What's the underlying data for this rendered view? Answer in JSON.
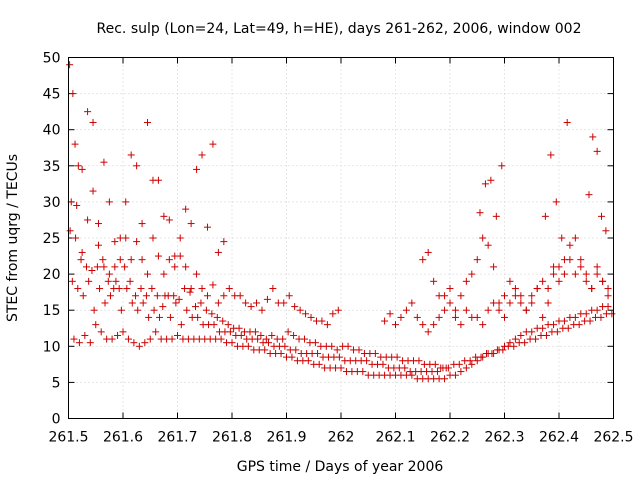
{
  "chart_data": {
    "type": "scatter",
    "title": "Rec. sulp (Lon=24, Lat=49, h=HE), days 261-262, 2006, window 002",
    "xlabel": "GPS time / Days of year 2006",
    "ylabel": "STEC from uqrg / TECUs",
    "xlim": [
      261.5,
      262.5
    ],
    "ylim": [
      0,
      50
    ],
    "xticks": [
      261.5,
      261.6,
      261.7,
      261.8,
      261.9,
      262.0,
      262.1,
      262.2,
      262.3,
      262.4,
      262.5
    ],
    "xtick_labels": [
      "261.5",
      "261.6",
      "261.7",
      "261.8",
      "261.9",
      "262",
      "262.1",
      "262.2",
      "262.3",
      "262.4",
      "262.5"
    ],
    "yticks": [
      0,
      5,
      10,
      15,
      20,
      25,
      30,
      35,
      40,
      45,
      50
    ],
    "ytick_labels": [
      "0",
      "5",
      "10",
      "15",
      "20",
      "25",
      "30",
      "35",
      "40",
      "45",
      "50"
    ],
    "grid": true,
    "marker": "+",
    "marker_color": "#cc0000",
    "series": [
      {
        "name": "STEC",
        "x": [
          261.502,
          261.508,
          261.512,
          261.518,
          261.525,
          261.535,
          261.545,
          261.555,
          261.565,
          261.575,
          261.585,
          261.595,
          261.605,
          261.615,
          261.625,
          261.635,
          261.645,
          261.655,
          261.665,
          261.675,
          261.685,
          261.695,
          261.705,
          261.715,
          261.725,
          261.735,
          261.745,
          261.755,
          261.765,
          261.775,
          261.785,
          261.505,
          261.515,
          261.525,
          261.535,
          261.545,
          261.555,
          261.565,
          261.575,
          261.585,
          261.595,
          261.605,
          261.615,
          261.625,
          261.635,
          261.645,
          261.655,
          261.665,
          261.675,
          261.685,
          261.695,
          261.705,
          261.715,
          261.725,
          261.735,
          261.745,
          261.755,
          261.765,
          261.775,
          261.785,
          261.795,
          261.805,
          261.815,
          261.825,
          261.835,
          261.845,
          261.855,
          261.865,
          261.875,
          261.885,
          261.895,
          261.905,
          261.915,
          261.925,
          261.935,
          261.945,
          261.955,
          261.965,
          261.975,
          261.985,
          261.995,
          261.503,
          261.513,
          261.523,
          261.533,
          261.543,
          261.553,
          261.563,
          261.573,
          261.583,
          261.593,
          261.603,
          261.613,
          261.623,
          261.633,
          261.643,
          261.653,
          261.663,
          261.673,
          261.683,
          261.693,
          261.703,
          261.713,
          261.723,
          261.733,
          261.743,
          261.753,
          261.763,
          261.773,
          261.783,
          261.793,
          261.803,
          261.813,
          261.823,
          261.833,
          261.843,
          261.853,
          261.863,
          261.873,
          261.883,
          261.893,
          261.903,
          261.913,
          261.923,
          261.933,
          261.943,
          261.953,
          261.963,
          261.973,
          261.983,
          261.993,
          262.003,
          262.013,
          262.023,
          262.033,
          262.043,
          262.053,
          262.063,
          262.073,
          262.083,
          262.093,
          262.103,
          262.113,
          262.123,
          262.133,
          262.143,
          262.153,
          262.163,
          262.173,
          262.183,
          262.193,
          261.507,
          261.517,
          261.527,
          261.537,
          261.547,
          261.557,
          261.567,
          261.577,
          261.587,
          261.597,
          261.607,
          261.617,
          261.627,
          261.637,
          261.647,
          261.657,
          261.667,
          261.677,
          261.687,
          261.697,
          261.707,
          261.717,
          261.727,
          261.737,
          261.747,
          261.757,
          261.767,
          261.777,
          261.787,
          261.797,
          261.807,
          261.817,
          261.827,
          261.837,
          261.847,
          261.857,
          261.867,
          261.877,
          261.887,
          261.897,
          261.907,
          261.917,
          261.927,
          261.937,
          261.947,
          261.957,
          261.967,
          261.977,
          261.987,
          261.997,
          262.007,
          262.017,
          262.027,
          262.037,
          262.047,
          262.057,
          262.067,
          262.077,
          262.087,
          262.097,
          262.107,
          262.117,
          262.127,
          262.137,
          262.147,
          262.157,
          262.167,
          262.177,
          262.187,
          262.197,
          262.207,
          262.217,
          262.227,
          262.237,
          262.247,
          262.257,
          262.267,
          262.277,
          262.287,
          262.297,
          262.307,
          262.317,
          262.327,
          262.337,
          262.347,
          262.357,
          262.367,
          262.377,
          262.387,
          262.397,
          262.407,
          262.417,
          262.427,
          262.437,
          262.447,
          262.457,
          262.467,
          262.477,
          262.487,
          262.497,
          261.51,
          261.52,
          261.53,
          261.54,
          261.55,
          261.56,
          261.57,
          261.58,
          261.59,
          261.6,
          261.61,
          261.62,
          261.63,
          261.64,
          261.65,
          261.66,
          261.67,
          261.68,
          261.69,
          261.7,
          261.71,
          261.72,
          261.73,
          261.74,
          261.75,
          261.76,
          261.77,
          261.78,
          261.79,
          261.8,
          261.81,
          261.82,
          261.83,
          261.84,
          261.85,
          261.86,
          261.87,
          261.88,
          261.89,
          261.9,
          261.91,
          261.92,
          261.93,
          261.94,
          261.95,
          261.96,
          261.97,
          261.98,
          261.99,
          262.0,
          262.01,
          262.02,
          262.03,
          262.04,
          262.05,
          262.06,
          262.07,
          262.08,
          262.09,
          262.1,
          262.11,
          262.12,
          262.13,
          262.14,
          262.15,
          262.16,
          262.17,
          262.18,
          262.19,
          262.2,
          262.21,
          262.22,
          262.23,
          262.24,
          262.25,
          262.26,
          262.27,
          262.28,
          262.29,
          262.3,
          262.31,
          262.32,
          262.33,
          262.34,
          262.35,
          262.36,
          262.37,
          262.38,
          262.39,
          262.4,
          262.41,
          262.42,
          262.43,
          262.44,
          262.45,
          262.46,
          262.47,
          262.48,
          262.49,
          262.08,
          262.09,
          262.1,
          262.11,
          262.12,
          262.13,
          262.14,
          262.15,
          262.16,
          262.17,
          262.18,
          262.19,
          262.2,
          262.21,
          262.22,
          262.23,
          262.24,
          262.25,
          262.26,
          262.27,
          262.28,
          262.29,
          262.3,
          262.31,
          262.32,
          262.33,
          262.34,
          262.35,
          262.36,
          262.37,
          262.38,
          262.39,
          262.4,
          262.41,
          262.42,
          262.43,
          262.44,
          262.45,
          262.46,
          262.47,
          262.48,
          262.49,
          262.15,
          262.16,
          262.17,
          262.18,
          262.19,
          262.2,
          262.21,
          262.22,
          262.23,
          262.24,
          262.25,
          262.26,
          262.27,
          262.28,
          262.29,
          262.3,
          262.31,
          262.32,
          262.33,
          262.34,
          262.35,
          262.36,
          262.37,
          262.38,
          262.39,
          262.4,
          262.41,
          262.42,
          262.43,
          262.44,
          262.45,
          262.46,
          262.47,
          262.48,
          262.49,
          262.255,
          262.265,
          262.275,
          262.285,
          262.295,
          262.375,
          262.385,
          262.395,
          262.405,
          262.415,
          262.455,
          262.462,
          262.47,
          262.478,
          262.486
        ],
        "y": [
          49,
          45,
          38,
          35,
          34.5,
          42.5,
          31.5,
          27,
          35.5,
          30,
          21,
          25,
          30,
          36.5,
          35,
          27,
          41,
          33,
          33,
          28,
          27.5,
          22.5,
          25,
          29,
          27,
          34.5,
          36.5,
          26.5,
          38,
          23,
          24.5,
          30,
          29.5,
          23,
          27.5,
          41,
          24,
          21,
          20,
          24.5,
          22,
          25,
          22,
          24.5,
          22,
          20,
          25,
          22.5,
          20,
          22,
          21,
          22.5,
          21,
          18,
          20,
          18,
          17,
          18.5,
          16,
          17,
          18,
          17,
          17,
          16,
          15.5,
          16,
          15,
          16.5,
          18,
          16,
          16,
          17,
          15.5,
          15,
          14.5,
          14,
          13.5,
          13.5,
          13,
          14.5,
          15,
          26,
          25,
          22,
          21,
          20.5,
          21,
          22,
          19,
          18,
          18,
          21,
          19,
          17,
          18,
          17,
          18,
          17,
          15.5,
          17,
          17,
          16.5,
          18,
          17.5,
          15.5,
          16,
          15,
          14.5,
          14,
          13.5,
          13,
          12.5,
          12.5,
          12,
          12,
          12,
          11.5,
          11,
          11.5,
          11,
          11,
          12,
          11.5,
          11,
          11,
          10.5,
          10.5,
          10,
          10,
          10,
          9.5,
          10,
          10,
          9.5,
          9.5,
          9,
          9,
          9,
          8.5,
          8.5,
          8.5,
          8.5,
          8,
          8,
          8,
          8,
          7.5,
          7.5,
          7.5,
          7,
          7,
          19,
          18,
          17,
          19,
          15,
          18,
          16,
          17,
          19,
          15,
          18,
          16,
          15,
          16,
          14,
          15,
          14,
          17,
          14,
          16,
          13,
          15,
          14,
          14,
          13,
          13,
          13,
          12,
          12,
          12,
          11.5,
          11.5,
          11,
          11,
          11,
          10.5,
          10.5,
          10,
          10,
          10,
          9.5,
          9.5,
          9,
          9,
          9,
          9,
          8.5,
          8.5,
          8.5,
          8.5,
          8,
          8,
          8,
          8,
          8,
          7.5,
          7.5,
          7.5,
          7,
          7,
          7,
          7,
          6.5,
          6.5,
          6.5,
          6.5,
          6.5,
          6.5,
          7,
          7,
          7.5,
          7.5,
          8,
          8,
          8.5,
          8.5,
          9,
          9,
          9.5,
          9.5,
          10,
          10,
          10.5,
          10.5,
          11,
          11,
          11.5,
          11.5,
          12,
          12,
          12.5,
          12.5,
          13,
          13,
          13.5,
          13.5,
          14,
          14,
          14.5,
          14.5,
          11,
          10.5,
          11.5,
          10.5,
          13,
          12,
          11,
          11,
          11.5,
          12,
          11,
          10.5,
          10,
          10.5,
          11,
          12,
          11,
          11,
          11,
          11.5,
          11,
          11,
          11,
          11,
          11,
          11,
          11,
          11,
          10.5,
          10.5,
          10,
          10,
          10,
          9.5,
          9.5,
          9.5,
          9,
          9,
          9,
          8.5,
          8.5,
          8,
          8,
          8,
          7.5,
          7.5,
          7,
          7,
          7,
          7,
          6.5,
          6.5,
          6.5,
          6.5,
          6,
          6,
          6,
          6,
          6,
          6,
          6,
          6,
          6,
          5.5,
          5.5,
          5.5,
          5.5,
          5.5,
          5.5,
          6,
          6,
          6.5,
          7,
          7.5,
          8,
          8.5,
          9,
          9,
          9.5,
          10,
          10.5,
          11,
          11.5,
          12,
          12,
          12.5,
          12.5,
          13,
          13,
          13.5,
          13.5,
          14,
          14,
          14.5,
          14.5,
          15,
          15,
          15.5,
          15.5,
          13.5,
          14.5,
          13,
          14,
          15,
          16,
          14,
          13,
          12,
          13,
          14,
          15,
          16,
          14,
          13,
          15,
          14,
          14,
          13,
          15,
          16,
          15,
          14,
          16,
          17,
          16,
          15,
          17,
          18,
          19,
          18,
          20,
          21,
          20,
          22,
          20,
          21,
          19,
          18,
          20,
          19,
          18,
          22,
          23,
          19,
          17,
          17,
          18,
          15,
          17,
          19,
          20,
          22,
          25,
          24,
          21,
          16,
          17,
          19,
          18,
          17,
          15,
          16,
          18,
          14,
          16,
          21,
          19,
          22,
          24,
          25,
          22,
          20,
          18,
          21,
          19,
          17,
          28.5,
          32.5,
          33,
          28,
          35,
          28,
          36.5,
          30,
          25,
          41,
          31,
          39,
          37,
          28,
          26
        ]
      }
    ]
  }
}
